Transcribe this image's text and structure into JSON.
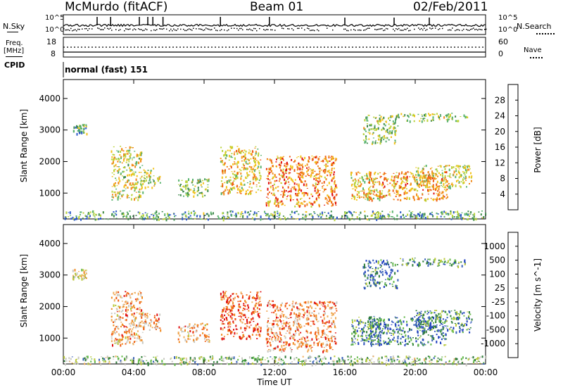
{
  "header": {
    "station": "McMurdo (fitACF)",
    "beam": "Beam 01",
    "date": "02/Feb/2011"
  },
  "top_panels": {
    "nsky_label": "N.Sky",
    "nsearch_label": "N.Search",
    "freq_label": "Freq.",
    "freq_unit": "[MHz]",
    "nave_label": "Nave",
    "cpid_label": "CPID",
    "cpid_value": "normal (fast) 151",
    "noise_ticks": [
      "10^5",
      "10^0"
    ],
    "freq_ticks": [
      "18",
      "8"
    ],
    "nave_ticks": [
      "60",
      "0"
    ]
  },
  "colors": {
    "power_scale": [
      "#1a1aff",
      "#2b58c8",
      "#3d8a4a",
      "#59b36e",
      "#b9d33a",
      "#f2c21a",
      "#f28a1a",
      "#ee5a12",
      "#e01010"
    ],
    "velocity_scale": [
      "#2040c0",
      "#3a62b8",
      "#2e7d3a",
      "#63b84a",
      "#b8c83a",
      "#c8c8c0",
      "#f0b060",
      "#f08a20",
      "#f05a10",
      "#e01010"
    ]
  },
  "chart_data": [
    {
      "type": "heatmap",
      "title": "",
      "xlabel": "",
      "ylabel": "Slant Range [km]",
      "colorbar_label": "Power [dB]",
      "colorbar_ticks": [
        "28",
        "24",
        "20",
        "16",
        "12",
        "8",
        "4"
      ],
      "colorbar_range": [
        0,
        30
      ],
      "x_ticks": [
        "00:00",
        "04:00",
        "08:00",
        "12:00",
        "16:00",
        "20:00",
        "00:00"
      ],
      "y_ticks": [
        "4000",
        "3000",
        "2000",
        "1000"
      ],
      "xlim_hours": [
        0,
        24
      ],
      "ylim_km": [
        180,
        4600
      ],
      "echo_regions": [
        {
          "t0": 0.5,
          "t1": 1.3,
          "r0": 2900,
          "r1": 3200,
          "level": 0.4
        },
        {
          "t0": 2.7,
          "t1": 4.5,
          "r0": 800,
          "r1": 2500,
          "level": 0.55
        },
        {
          "t0": 4.5,
          "t1": 5.5,
          "r0": 1200,
          "r1": 1800,
          "level": 0.5
        },
        {
          "t0": 6.5,
          "t1": 8.3,
          "r0": 900,
          "r1": 1500,
          "level": 0.45
        },
        {
          "t0": 8.9,
          "t1": 11.2,
          "r0": 1000,
          "r1": 2500,
          "level": 0.6
        },
        {
          "t0": 11.5,
          "t1": 15.5,
          "r0": 600,
          "r1": 2200,
          "level": 0.75
        },
        {
          "t0": 16.3,
          "t1": 18.0,
          "r0": 800,
          "r1": 1700,
          "level": 0.6
        },
        {
          "t0": 17.3,
          "t1": 21.8,
          "r0": 800,
          "r1": 1700,
          "level": 0.7
        },
        {
          "t0": 20.0,
          "t1": 23.2,
          "r0": 1200,
          "r1": 1900,
          "level": 0.55
        },
        {
          "t0": 17.0,
          "t1": 19.0,
          "r0": 2600,
          "r1": 3500,
          "level": 0.45
        },
        {
          "t0": 19.0,
          "t1": 23.0,
          "r0": 3300,
          "r1": 3550,
          "level": 0.45
        },
        {
          "t0": 0.0,
          "t1": 24.0,
          "r0": 180,
          "r1": 450,
          "level": 0.35
        }
      ]
    },
    {
      "type": "heatmap",
      "title": "",
      "xlabel": "Time UT",
      "ylabel": "Slant Range [km]",
      "colorbar_label": "Velocity [m s^-1]",
      "colorbar_ticks": [
        "1000",
        "500",
        "100",
        "25",
        "-25",
        "-100",
        "-500",
        "-1000"
      ],
      "colorbar_range": [
        -1000,
        1000
      ],
      "x_ticks": [
        "00:00",
        "04:00",
        "08:00",
        "12:00",
        "16:00",
        "20:00",
        "00:00"
      ],
      "y_ticks": [
        "4000",
        "3000",
        "2000",
        "1000"
      ],
      "xlim_hours": [
        0,
        24
      ],
      "ylim_km": [
        180,
        4600
      ],
      "echo_regions": [
        {
          "t0": 0.5,
          "t1": 1.3,
          "r0": 2900,
          "r1": 3200,
          "level": 0.55
        },
        {
          "t0": 2.7,
          "t1": 4.5,
          "r0": 800,
          "r1": 2500,
          "level": 0.7
        },
        {
          "t0": 4.5,
          "t1": 5.5,
          "r0": 1200,
          "r1": 1800,
          "level": 0.72
        },
        {
          "t0": 6.5,
          "t1": 8.3,
          "r0": 900,
          "r1": 1500,
          "level": 0.7
        },
        {
          "t0": 8.9,
          "t1": 11.2,
          "r0": 1000,
          "r1": 2500,
          "level": 0.85
        },
        {
          "t0": 11.5,
          "t1": 15.5,
          "r0": 600,
          "r1": 2200,
          "level": 0.75
        },
        {
          "t0": 16.3,
          "t1": 18.0,
          "r0": 800,
          "r1": 1700,
          "level": 0.25
        },
        {
          "t0": 17.3,
          "t1": 21.8,
          "r0": 800,
          "r1": 1700,
          "level": 0.2
        },
        {
          "t0": 20.0,
          "t1": 23.2,
          "r0": 1200,
          "r1": 1900,
          "level": 0.22
        },
        {
          "t0": 17.0,
          "t1": 19.0,
          "r0": 2600,
          "r1": 3500,
          "level": 0.2
        },
        {
          "t0": 19.0,
          "t1": 23.0,
          "r0": 3300,
          "r1": 3550,
          "level": 0.25
        },
        {
          "t0": 0.0,
          "t1": 24.0,
          "r0": 180,
          "r1": 450,
          "level": 0.4
        }
      ]
    }
  ]
}
